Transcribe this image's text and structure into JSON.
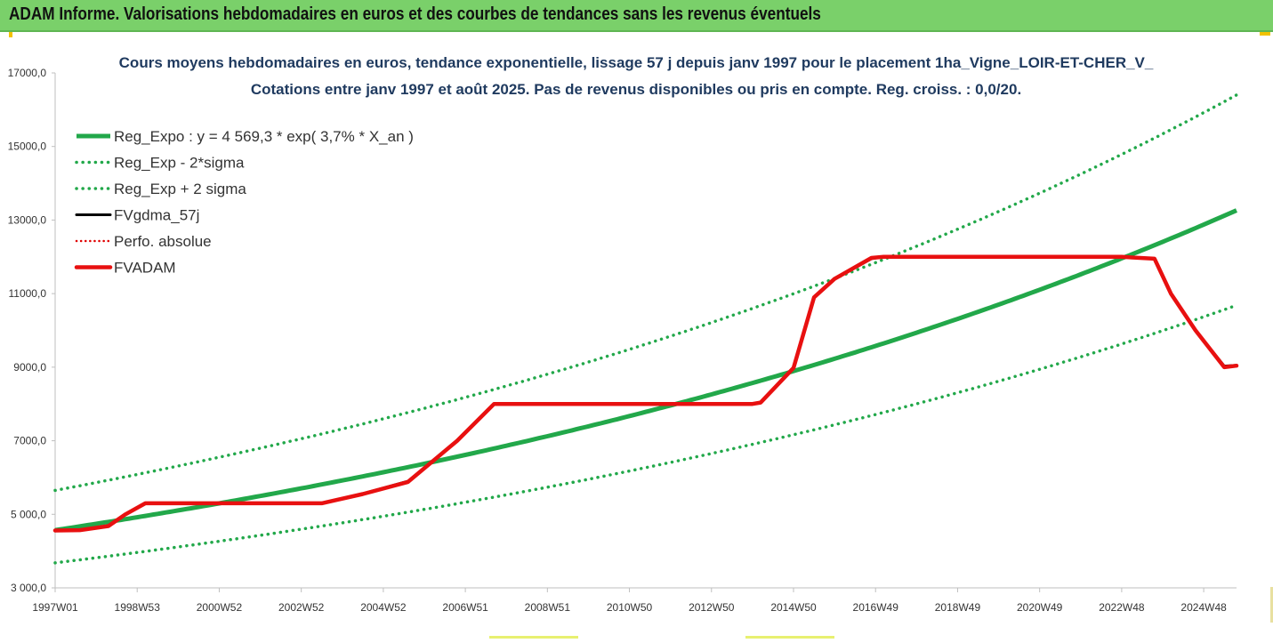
{
  "banner": {
    "title": "ADAM Informe. Valorisations hebdomadaires en euros et des courbes de tendances sans les revenus éventuels"
  },
  "chart_data": {
    "type": "line",
    "title": "Cours moyens hebdomadaires en euros, tendance exponentielle, lissage 57 j depuis janv 1997 pour le placement 1ha_Vigne_LOIR-ET-CHER_V_",
    "subtitle": "Cotations entre janv 1997 et août 2025.  Pas de revenus disponibles ou pris en compte. Reg. croiss. : 0,0/20.",
    "xlabel": "",
    "ylabel": "",
    "x_tick_labels": [
      "1997W01",
      "1998W53",
      "2000W52",
      "2002W52",
      "2004W52",
      "2006W51",
      "2008W51",
      "2010W50",
      "2012W50",
      "2014W50",
      "2016W49",
      "2018W49",
      "2020W49",
      "2022W48",
      "2024W48"
    ],
    "x_ticks_years": [
      1997.0,
      1999.0,
      2001.0,
      2003.0,
      2005.0,
      2007.0,
      2009.0,
      2011.0,
      2013.0,
      2015.0,
      2017.0,
      2019.0,
      2021.0,
      2023.0,
      2025.0
    ],
    "xlim": [
      1997.0,
      2025.8
    ],
    "ylim": [
      3000,
      17000
    ],
    "y_ticks": [
      3000,
      5000,
      7000,
      9000,
      11000,
      13000,
      15000,
      17000
    ],
    "y_tick_labels": [
      "3 000,0",
      "5 000,0",
      "7000,0",
      "9000,0",
      "11000,0",
      "13000,0",
      "15000,0",
      "17000,0"
    ],
    "grid": false,
    "legend_position": "top-left",
    "colors": {
      "trend": "#22a84a",
      "band": "#22a84a",
      "gdma": "#000000",
      "perfo": "#e00000",
      "fvadam": "#e81010",
      "banner": "#7ad06a",
      "corner": "#f2c200"
    },
    "series": [
      {
        "name": "Reg_Expo : y = 4 569,3 * exp( 3,7% *  X_an )",
        "kind": "exp",
        "a": 4569.3,
        "r": 0.037,
        "style": "solid-green"
      },
      {
        "name": "Reg_Exp - 2*sigma",
        "kind": "exp",
        "a": 3680,
        "r": 0.037,
        "style": "dotted-green"
      },
      {
        "name": "Reg_Exp + 2 sigma",
        "kind": "exp",
        "a": 5650,
        "r": 0.037,
        "style": "dotted-green"
      },
      {
        "name": "FVgdma_57j",
        "kind": "points",
        "style": "solid-black",
        "x": [
          1997.0,
          1997.6,
          1998.3,
          1998.7,
          1999.2,
          2000.0,
          2001.0,
          2003.5,
          2004.5,
          2005.6,
          2006.8,
          2007.7,
          2008.0,
          2010.0,
          2012.0,
          2014.0,
          2014.2,
          2015.0,
          2015.5,
          2016.0,
          2016.9,
          2017.2,
          2019.0,
          2021.0,
          2023.0,
          2023.8,
          2024.2,
          2024.8,
          2025.5,
          2025.8
        ],
        "y": [
          4560,
          4580,
          4690,
          5000,
          5300,
          5300,
          5300,
          5300,
          5560,
          5900,
          7000,
          8000,
          8000,
          8000,
          8000,
          8000,
          8050,
          9000,
          10900,
          11400,
          11950,
          12000,
          12000,
          12000,
          12000,
          11950,
          11000,
          10000,
          9030,
          9050
        ]
      },
      {
        "name": "Perfo. absolue",
        "kind": "points",
        "style": "dotted-red",
        "x": [],
        "y": []
      },
      {
        "name": "FVADAM",
        "kind": "points",
        "style": "solid-red",
        "x": [
          1997.0,
          1997.6,
          1998.3,
          1998.7,
          1999.2,
          2000.0,
          2001.0,
          2003.5,
          2004.5,
          2005.6,
          2006.8,
          2007.7,
          2008.0,
          2010.0,
          2012.0,
          2014.0,
          2014.2,
          2015.0,
          2015.5,
          2016.0,
          2016.9,
          2017.2,
          2019.0,
          2021.0,
          2023.0,
          2023.8,
          2024.2,
          2024.8,
          2025.5,
          2025.8
        ],
        "y": [
          4560,
          4570,
          4680,
          4990,
          5300,
          5300,
          5300,
          5300,
          5550,
          5880,
          7000,
          8000,
          8000,
          8000,
          8000,
          8000,
          8040,
          8980,
          10900,
          11400,
          11970,
          12000,
          12000,
          12000,
          12000,
          11950,
          11000,
          10000,
          9000,
          9040
        ]
      }
    ]
  }
}
